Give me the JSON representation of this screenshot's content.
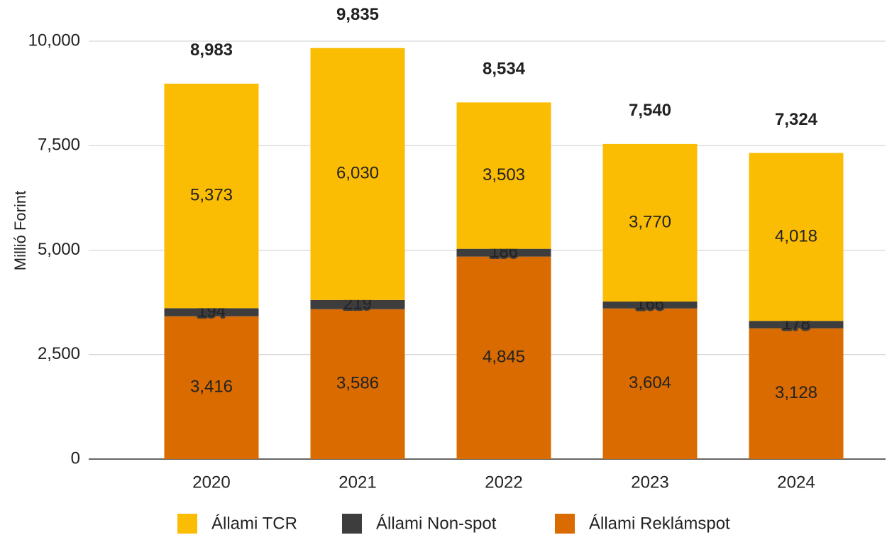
{
  "chart_data": {
    "type": "stacked_bar",
    "y_label": "Millió Forint",
    "categories": [
      "2020",
      "2021",
      "2022",
      "2023",
      "2024"
    ],
    "series": [
      {
        "name": "Állami TCR",
        "color": "#fbbc04",
        "values": [
          5373,
          6030,
          3503,
          3770,
          4018
        ],
        "value_labels": [
          "5,373",
          "6,030",
          "3,503",
          "3,770",
          "4,018"
        ]
      },
      {
        "name": "Állami Non-spot",
        "color": "#3d3d3d",
        "values": [
          194,
          219,
          186,
          166,
          178
        ]
      },
      {
        "name": "Állami Reklámspot",
        "color": "#d96b00",
        "values": [
          3416,
          3586,
          4845,
          3604,
          3128
        ],
        "value_labels": [
          "3,416",
          "3,586",
          "4,845",
          "3,604",
          "3,128"
        ]
      }
    ],
    "totals": [
      8983,
      9835,
      8534,
      7540,
      7324
    ],
    "total_labels": [
      "8,983",
      "9,835",
      "8,534",
      "7,540",
      "7,324"
    ],
    "ylim": [
      0,
      10000
    ],
    "yticks": [
      0,
      {
        "value": 2500,
        "label": "2,500"
      },
      {
        "value": 5000,
        "label": "5,000"
      },
      {
        "value": 7500,
        "label": "7,500"
      },
      {
        "value": 10000,
        "label": "10,000"
      }
    ],
    "grid": true,
    "legend": "bottom"
  }
}
